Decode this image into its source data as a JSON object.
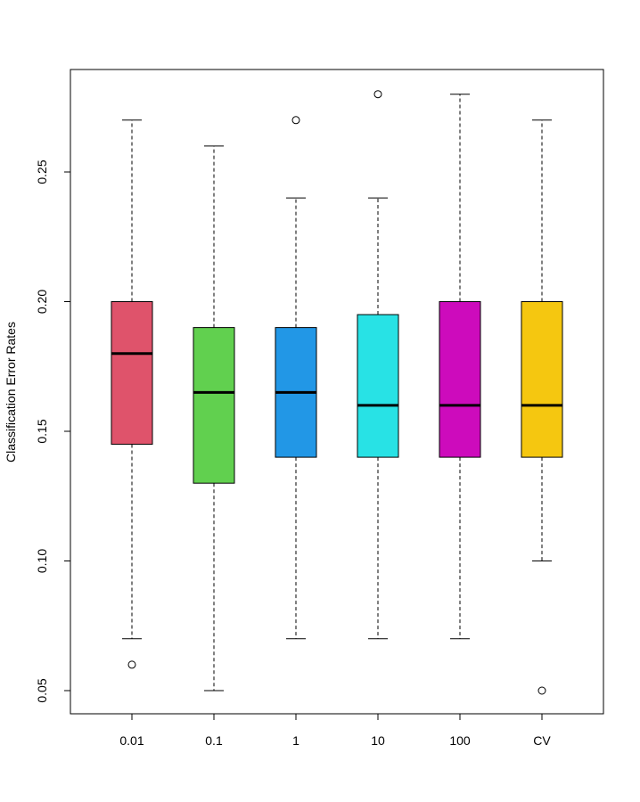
{
  "chart_data": {
    "type": "boxplot",
    "title": "",
    "xlabel": "",
    "ylabel": "Classification Error Rates",
    "ylim": [
      0.04,
      0.288
    ],
    "y_ticks": [
      0.05,
      0.1,
      0.15,
      0.2,
      0.25
    ],
    "y_tick_labels": [
      "0.05",
      "0.10",
      "0.15",
      "0.20",
      "0.25"
    ],
    "grid": false,
    "legend": "none",
    "categories": [
      "0.01",
      "0.1",
      "1",
      "10",
      "100",
      "CV"
    ],
    "boxes": [
      {
        "label": "0.01",
        "color": "#DF536B",
        "whisker_low": 0.07,
        "q1": 0.145,
        "median": 0.18,
        "q3": 0.2,
        "whisker_high": 0.27,
        "outliers": [
          0.06
        ]
      },
      {
        "label": "0.1",
        "color": "#61D04F",
        "whisker_low": 0.05,
        "q1": 0.13,
        "median": 0.165,
        "q3": 0.19,
        "whisker_high": 0.26,
        "outliers": []
      },
      {
        "label": "1",
        "color": "#2297E6",
        "whisker_low": 0.07,
        "q1": 0.14,
        "median": 0.165,
        "q3": 0.19,
        "whisker_high": 0.24,
        "outliers": [
          0.27
        ]
      },
      {
        "label": "10",
        "color": "#28E2E5",
        "whisker_low": 0.07,
        "q1": 0.14,
        "median": 0.16,
        "q3": 0.195,
        "whisker_high": 0.24,
        "outliers": [
          0.28
        ]
      },
      {
        "label": "100",
        "color": "#CD0BBC",
        "whisker_low": 0.07,
        "q1": 0.14,
        "median": 0.16,
        "q3": 0.2,
        "whisker_high": 0.28,
        "outliers": []
      },
      {
        "label": "CV",
        "color": "#F5C710",
        "whisker_low": 0.1,
        "q1": 0.14,
        "median": 0.16,
        "q3": 0.2,
        "whisker_high": 0.27,
        "outliers": [
          0.05
        ]
      }
    ]
  }
}
